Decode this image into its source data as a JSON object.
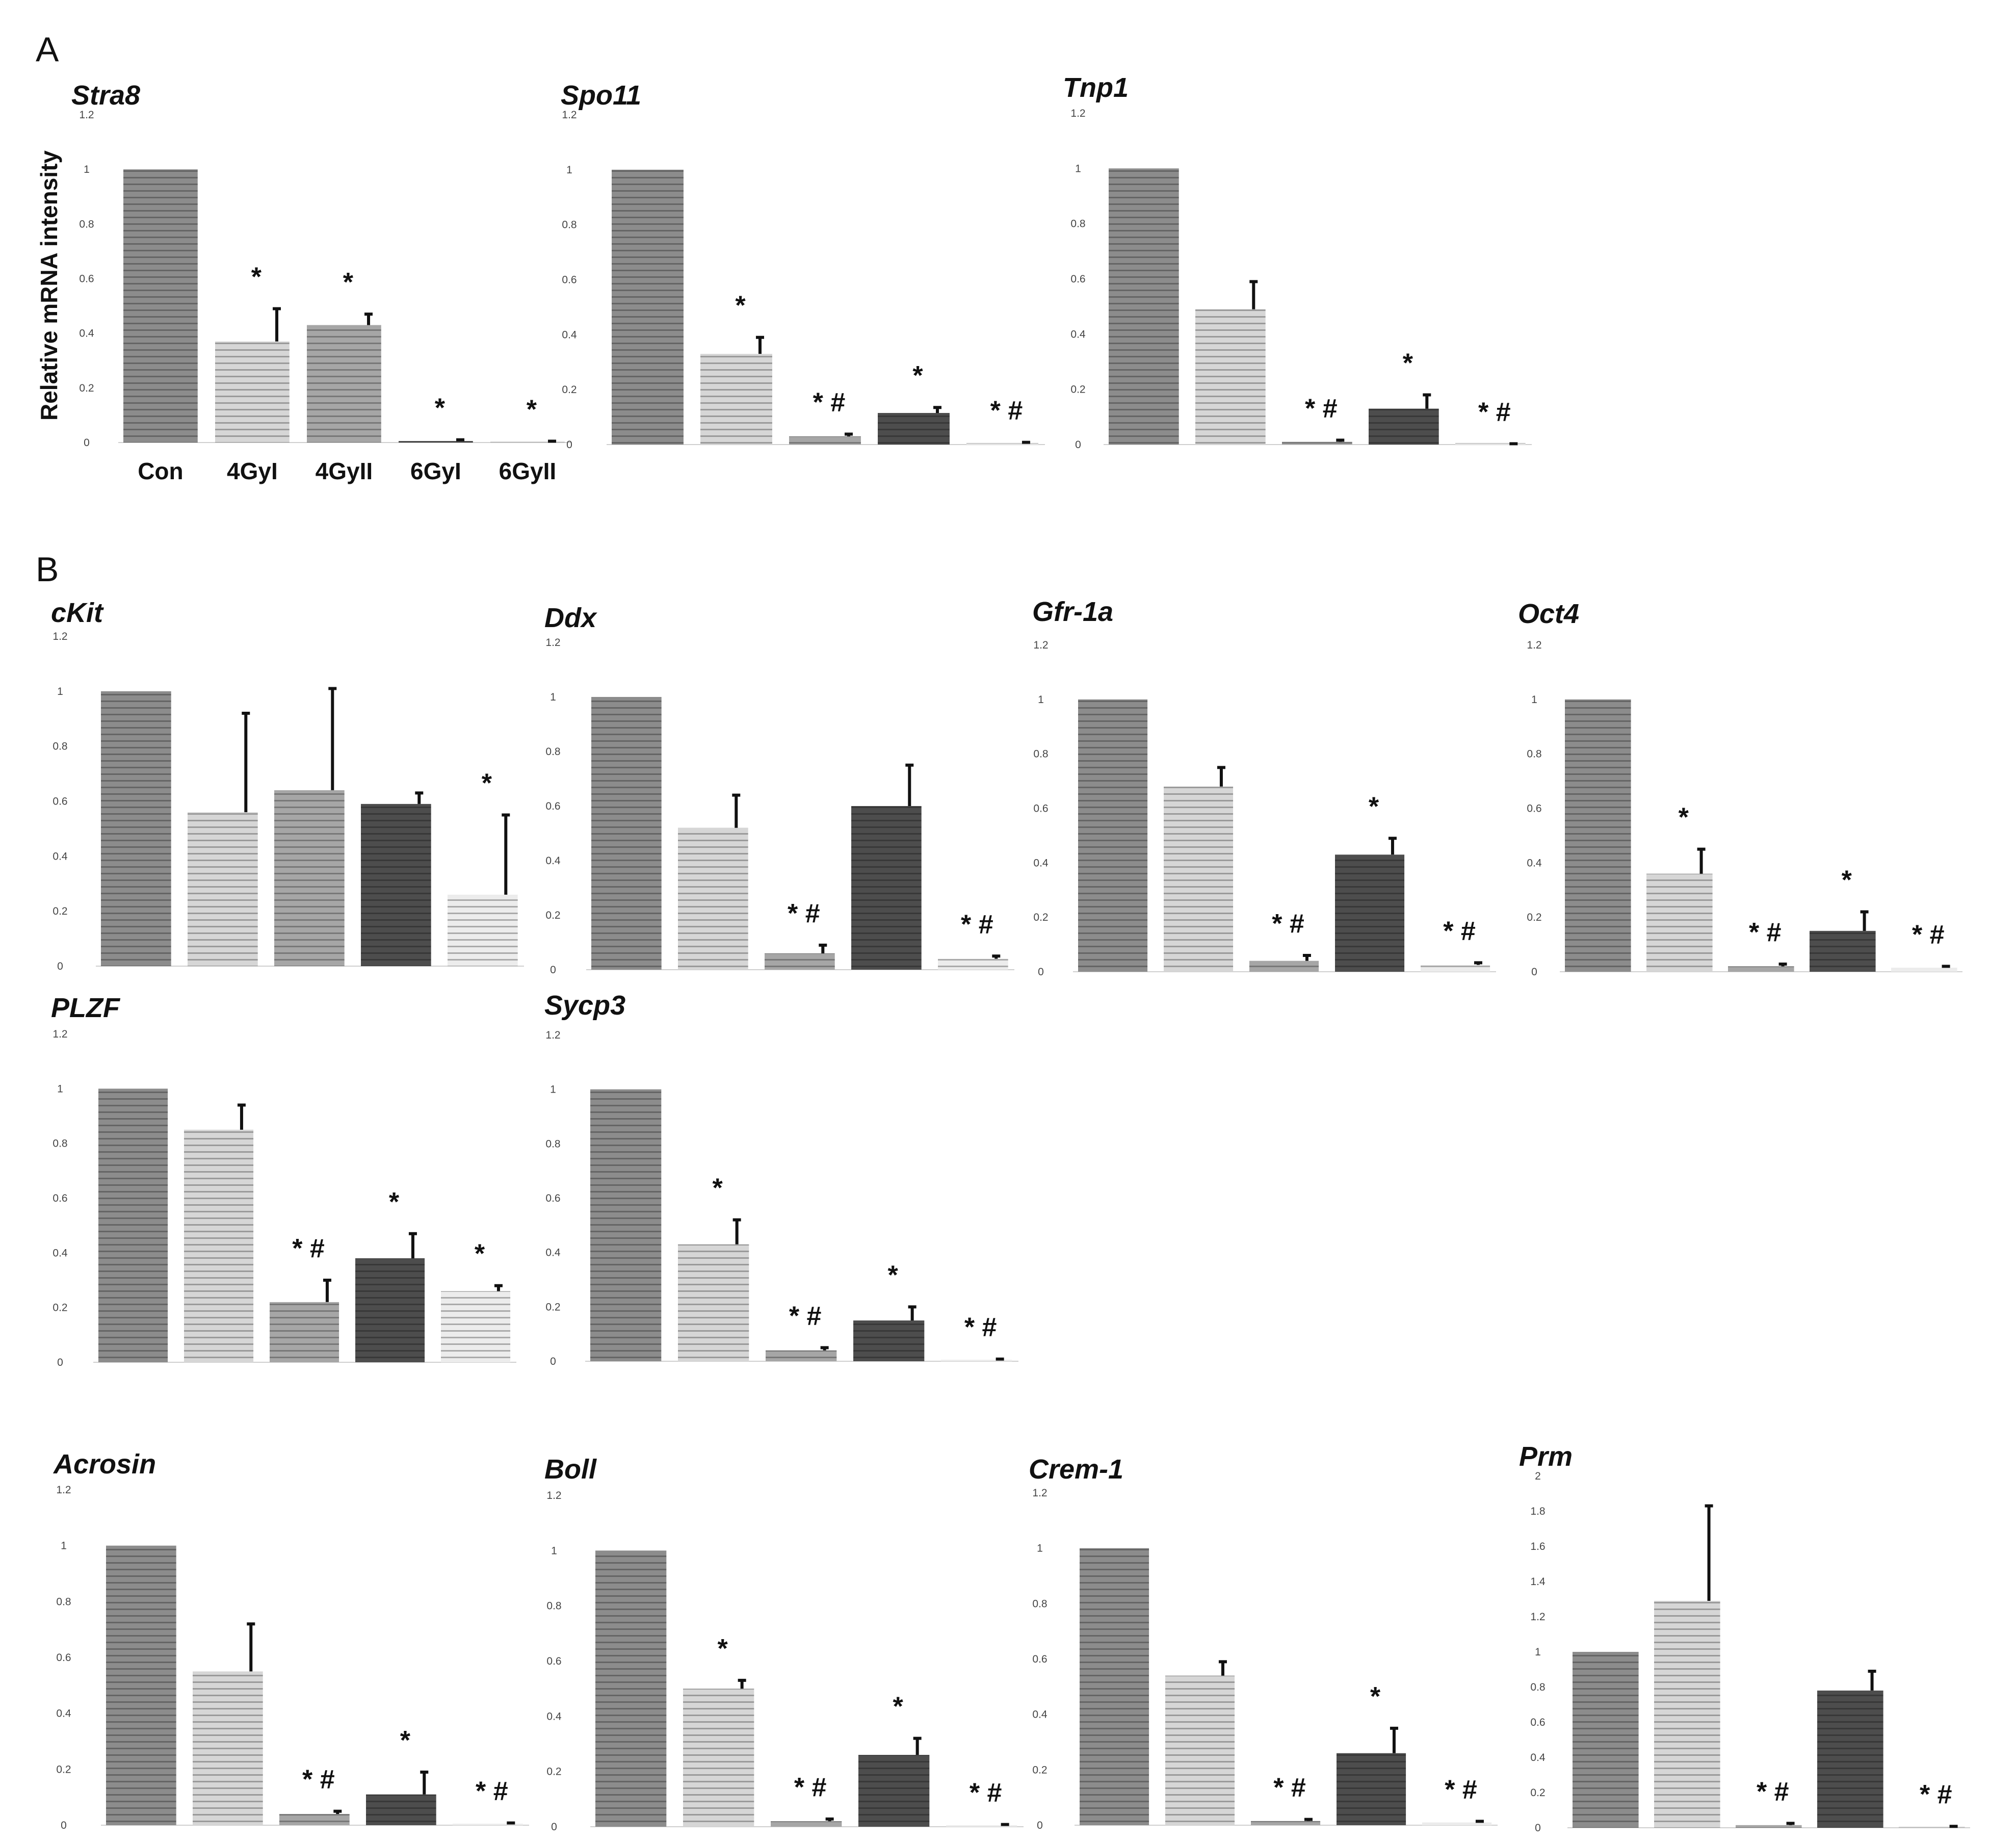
{
  "figure": {
    "panel_labels": [
      "A",
      "B"
    ],
    "ylabel": "Relative mRNA intensity",
    "categories": [
      "Con",
      "4GyI",
      "4GyII",
      "6GyI",
      "6GyII"
    ],
    "colors": {
      "Con": "#8c8c8c",
      "4GyI": "#d6d6d6",
      "4GyII": "#a6a6a6",
      "6GyI": "#4d4d4d",
      "6GyII": "#ececec",
      "stripe": "#000000",
      "text": "#111111"
    }
  },
  "chart_data": [
    {
      "type": "bar",
      "title": "Stra8",
      "categories": [
        "Con",
        "4GyI",
        "4GyII",
        "6GyI",
        "6GyII"
      ],
      "values": [
        1.0,
        0.37,
        0.43,
        0.005,
        0.003
      ],
      "errors": [
        0,
        0.12,
        0.04,
        0.005,
        0.002
      ],
      "sig": [
        "",
        "*",
        "*",
        "*",
        "*"
      ],
      "ylim": [
        0,
        1.2
      ],
      "yticks": [
        "0",
        "0.2",
        "0.4",
        "0.6",
        "0.8",
        "1",
        "1.2"
      ],
      "xlabel": "",
      "ylabel": "Relative mRNA intensity"
    },
    {
      "type": "bar",
      "title": "Spo11",
      "categories": [
        "Con",
        "4GyI",
        "4GyII",
        "6GyI",
        "6GyII"
      ],
      "values": [
        1.0,
        0.33,
        0.03,
        0.115,
        0.005
      ],
      "errors": [
        0,
        0.06,
        0.008,
        0.02,
        0.003
      ],
      "sig": [
        "",
        "*",
        "* #",
        "*",
        "* #"
      ],
      "ylim": [
        0,
        1.2
      ],
      "yticks": [
        "0",
        "0.2",
        "0.4",
        "0.6",
        "0.8",
        "1",
        "1.2"
      ]
    },
    {
      "type": "bar",
      "title": "Tnp1",
      "categories": [
        "Con",
        "4GyI",
        "4GyII",
        "6GyI",
        "6GyII"
      ],
      "values": [
        1.0,
        0.49,
        0.01,
        0.13,
        0.002
      ],
      "errors": [
        0,
        0.1,
        0.006,
        0.05,
        0.001
      ],
      "sig": [
        "",
        "",
        "* #",
        "*",
        "* #"
      ],
      "ylim": [
        0,
        1.2
      ],
      "yticks": [
        "0",
        "0.2",
        "0.4",
        "0.6",
        "0.8",
        "1",
        "1.2"
      ]
    },
    {
      "type": "bar",
      "title": "cKit",
      "categories": [
        "Con",
        "4GyI",
        "4GyII",
        "6GyI",
        "6GyII"
      ],
      "values": [
        1.0,
        0.56,
        0.64,
        0.59,
        0.26
      ],
      "errors": [
        0,
        0.36,
        0.37,
        0.04,
        0.29
      ],
      "sig": [
        "",
        "",
        "",
        "",
        "*"
      ],
      "ylim": [
        0,
        1.2
      ],
      "yticks": [
        "0",
        "0.2",
        "0.4",
        "0.6",
        "0.8",
        "1",
        "1.2"
      ]
    },
    {
      "type": "bar",
      "title": "Ddx",
      "categories": [
        "Con",
        "4GyI",
        "4GyII",
        "6GyI",
        "6GyII"
      ],
      "values": [
        1.0,
        0.52,
        0.06,
        0.6,
        0.04
      ],
      "errors": [
        0,
        0.12,
        0.03,
        0.15,
        0.01
      ],
      "sig": [
        "",
        "",
        "* #",
        "",
        "* #"
      ],
      "ylim": [
        0,
        1.2
      ],
      "yticks": [
        "0",
        "0.2",
        "0.4",
        "0.6",
        "0.8",
        "1",
        "1.2"
      ]
    },
    {
      "type": "bar",
      "title": "Gfr-1a",
      "categories": [
        "Con",
        "4GyI",
        "4GyII",
        "6GyI",
        "6GyII"
      ],
      "values": [
        1.0,
        0.68,
        0.04,
        0.43,
        0.025
      ],
      "errors": [
        0,
        0.07,
        0.02,
        0.06,
        0.008
      ],
      "sig": [
        "",
        "",
        "* #",
        "*",
        "* #"
      ],
      "ylim": [
        0,
        1.2
      ],
      "yticks": [
        "0",
        "0.2",
        "0.4",
        "0.6",
        "0.8",
        "1",
        "1.2"
      ]
    },
    {
      "type": "bar",
      "title": "Oct4",
      "categories": [
        "Con",
        "4GyI",
        "4GyII",
        "6GyI",
        "6GyII"
      ],
      "values": [
        1.0,
        0.36,
        0.02,
        0.15,
        0.015
      ],
      "errors": [
        0,
        0.09,
        0.008,
        0.07,
        0.005
      ],
      "sig": [
        "",
        "*",
        "* #",
        "*",
        "* #"
      ],
      "ylim": [
        0,
        1.2
      ],
      "yticks": [
        "0",
        "0.2",
        "0.4",
        "0.6",
        "0.8",
        "1",
        "1.2"
      ]
    },
    {
      "type": "bar",
      "title": "PLZF",
      "categories": [
        "Con",
        "4GyI",
        "4GyII",
        "6GyI",
        "6GyII"
      ],
      "values": [
        1.0,
        0.85,
        0.22,
        0.38,
        0.26
      ],
      "errors": [
        0,
        0.09,
        0.08,
        0.09,
        0.02
      ],
      "sig": [
        "",
        "",
        "* #",
        "*",
        "*"
      ],
      "ylim": [
        0,
        1.2
      ],
      "yticks": [
        "0",
        "0.2",
        "0.4",
        "0.6",
        "0.8",
        "1",
        "1.2"
      ]
    },
    {
      "type": "bar",
      "title": "Sycp3",
      "categories": [
        "Con",
        "4GyI",
        "4GyII",
        "6GyI",
        "6GyII"
      ],
      "values": [
        1.0,
        0.43,
        0.04,
        0.15,
        0.005
      ],
      "errors": [
        0,
        0.09,
        0.01,
        0.05,
        0.003
      ],
      "sig": [
        "",
        "*",
        "* #",
        "*",
        "* #"
      ],
      "ylim": [
        0,
        1.2
      ],
      "yticks": [
        "0",
        "0.2",
        "0.4",
        "0.6",
        "0.8",
        "1",
        "1.2"
      ]
    },
    {
      "type": "bar",
      "title": "Acrosin",
      "categories": [
        "Con",
        "4GyI",
        "4GyII",
        "6GyI",
        "6GyII"
      ],
      "values": [
        1.0,
        0.55,
        0.04,
        0.11,
        0.005
      ],
      "errors": [
        0,
        0.17,
        0.01,
        0.08,
        0.003
      ],
      "sig": [
        "",
        "",
        "* #",
        "*",
        "* #"
      ],
      "ylim": [
        0,
        1.2
      ],
      "yticks": [
        "0",
        "0.2",
        "0.4",
        "0.6",
        "0.8",
        "1",
        "1.2"
      ]
    },
    {
      "type": "bar",
      "title": "Boll",
      "categories": [
        "Con",
        "4GyI",
        "4GyII",
        "6GyI",
        "6GyII"
      ],
      "values": [
        1.0,
        0.5,
        0.02,
        0.26,
        0.005
      ],
      "errors": [
        0,
        0.03,
        0.008,
        0.06,
        0.003
      ],
      "sig": [
        "",
        "*",
        "* #",
        "*",
        "* #"
      ],
      "ylim": [
        0,
        1.2
      ],
      "yticks": [
        "0",
        "0.2",
        "0.4",
        "0.6",
        "0.8",
        "1",
        "1.2"
      ]
    },
    {
      "type": "bar",
      "title": "Crem-1",
      "categories": [
        "Con",
        "4GyI",
        "4GyII",
        "6GyI",
        "6GyII"
      ],
      "values": [
        1.0,
        0.54,
        0.015,
        0.26,
        0.01
      ],
      "errors": [
        0,
        0.05,
        0.006,
        0.09,
        0.004
      ],
      "sig": [
        "",
        "",
        "* #",
        "*",
        "* #"
      ],
      "ylim": [
        0,
        1.2
      ],
      "yticks": [
        "0",
        "0.2",
        "0.4",
        "0.6",
        "0.8",
        "1",
        "1.2"
      ]
    },
    {
      "type": "bar",
      "title": "Prm",
      "categories": [
        "Con",
        "4GyI",
        "4GyII",
        "6GyI",
        "6GyII"
      ],
      "values": [
        1.0,
        1.29,
        0.015,
        0.78,
        0.005
      ],
      "errors": [
        0,
        0.54,
        0.01,
        0.11,
        0.003
      ],
      "sig": [
        "",
        "",
        "* #",
        "",
        "* #"
      ],
      "ylim": [
        0,
        2
      ],
      "yticks": [
        "0",
        "0.2",
        "0.4",
        "0.6",
        "0.8",
        "1",
        "1.2",
        "1.4",
        "1.6",
        "1.8",
        "2"
      ]
    }
  ]
}
